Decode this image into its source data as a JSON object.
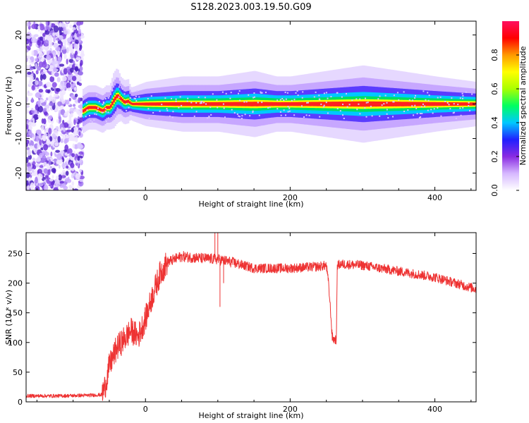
{
  "title": "S128.2023.003.19.50.G09",
  "chart_data": [
    {
      "type": "heatmap",
      "xlabel": "Height of straight line (km)",
      "ylabel": "Frequency (Hz)",
      "xlim": [
        -165,
        457
      ],
      "ylim": [
        -25,
        24
      ],
      "x_ticks": [
        0,
        200,
        400
      ],
      "y_ticks": [
        -20,
        -10,
        0,
        10,
        20
      ],
      "colorbar": {
        "label": "Normalized spectral amplitude",
        "range": [
          0,
          1
        ],
        "ticks": [
          "0.0",
          "0.2",
          "0.4",
          "0.6",
          "0.8"
        ],
        "colors": [
          "#ffffff",
          "#d6b8ff",
          "#8a2be2",
          "#2020ff",
          "#00c8ff",
          "#00ff60",
          "#aaff00",
          "#ffff00",
          "#ff9900",
          "#ff0000",
          "#ff1060"
        ]
      },
      "noise_region_x": [
        -165,
        -87
      ],
      "ridge": {
        "x": [
          -87,
          -80,
          -70,
          -60,
          -55,
          -50,
          -45,
          -40,
          -35,
          -30,
          -25,
          -22,
          -20,
          0,
          50,
          100,
          150,
          180,
          200,
          250,
          300,
          350,
          400,
          457
        ],
        "freq": [
          -2,
          -1,
          -1,
          -2,
          -1,
          -1,
          1,
          2.5,
          1.5,
          0.5,
          0.8,
          0.3,
          0,
          0,
          0,
          0,
          0,
          0,
          0,
          0,
          0,
          0,
          0,
          0
        ],
        "width": [
          2,
          2,
          2,
          2,
          2,
          2,
          2.5,
          2.5,
          2,
          2,
          2,
          1.5,
          1.5,
          2,
          2.5,
          2.5,
          3,
          2.5,
          2.5,
          3,
          3.5,
          3,
          2.5,
          2
        ]
      }
    },
    {
      "type": "line",
      "xlabel": "Height of straight line (km)",
      "ylabel": "SNR (10 * v/v)",
      "xlim": [
        -165,
        457
      ],
      "ylim": [
        0,
        285
      ],
      "x_ticks": [
        0,
        200,
        400
      ],
      "y_ticks": [
        0,
        50,
        100,
        150,
        200,
        250
      ],
      "color": "#ee3333",
      "series": [
        {
          "x": [
            -165,
            -120,
            -80,
            -60,
            -55,
            -50,
            -40,
            -30,
            -20,
            -10,
            0,
            10,
            20,
            30,
            50,
            75,
            100,
            120,
            150,
            200,
            240,
            250,
            253,
            256,
            258,
            260,
            264,
            265,
            270,
            300,
            350,
            400,
            457
          ],
          "y": [
            10,
            10,
            11,
            12,
            30,
            60,
            90,
            105,
            120,
            110,
            140,
            180,
            215,
            235,
            245,
            242,
            240,
            235,
            225,
            225,
            228,
            230,
            200,
            150,
            110,
            105,
            105,
            230,
            232,
            230,
            220,
            210,
            190
          ]
        }
      ]
    }
  ]
}
